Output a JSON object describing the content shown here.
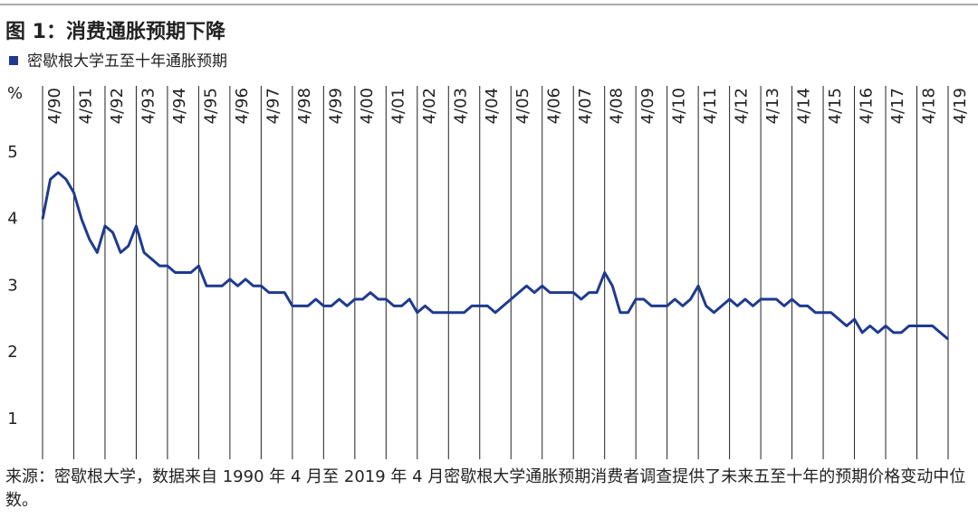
{
  "chart_data": {
    "type": "line",
    "title": "图 1：消费通胀预期下降",
    "y_unit": "%",
    "source": "来源：密歇根大学，数据来自 1990 年 4 月至 2019 年 4 月密歇根大学通胀预期消费者调查提供了未来五至十年的预期价格变动中位数。",
    "x": [
      "4/90",
      "7/90",
      "10/90",
      "1/91",
      "4/91",
      "7/91",
      "10/91",
      "1/92",
      "4/92",
      "7/92",
      "10/92",
      "1/93",
      "4/93",
      "7/93",
      "10/93",
      "1/94",
      "4/94",
      "7/94",
      "10/94",
      "1/95",
      "4/95",
      "7/95",
      "10/95",
      "1/96",
      "4/96",
      "7/96",
      "10/96",
      "1/97",
      "4/97",
      "7/97",
      "10/97",
      "1/98",
      "4/98",
      "7/98",
      "10/98",
      "1/99",
      "4/99",
      "7/99",
      "10/99",
      "1/00",
      "4/00",
      "7/00",
      "10/00",
      "1/01",
      "4/01",
      "7/01",
      "10/01",
      "1/02",
      "4/02",
      "7/02",
      "10/02",
      "1/03",
      "4/03",
      "7/03",
      "10/03",
      "1/04",
      "4/04",
      "7/04",
      "10/04",
      "1/05",
      "4/05",
      "7/05",
      "10/05",
      "1/06",
      "4/06",
      "7/06",
      "10/06",
      "1/07",
      "4/07",
      "7/07",
      "10/07",
      "1/08",
      "4/08",
      "7/08",
      "10/08",
      "1/09",
      "4/09",
      "7/09",
      "10/09",
      "1/10",
      "4/10",
      "7/10",
      "10/10",
      "1/11",
      "4/11",
      "7/11",
      "10/11",
      "1/12",
      "4/12",
      "7/12",
      "10/12",
      "1/13",
      "4/13",
      "7/13",
      "10/13",
      "1/14",
      "4/14",
      "7/14",
      "10/14",
      "1/15",
      "4/15",
      "7/15",
      "10/15",
      "1/16",
      "4/16",
      "7/16",
      "10/16",
      "1/17",
      "4/17",
      "7/17",
      "10/17",
      "1/18",
      "4/18",
      "7/18",
      "10/18",
      "1/19",
      "4/19"
    ],
    "series": [
      {
        "name": "密歇根大学五至十年通胀预期",
        "color": "#1f3a8f",
        "values": [
          4.0,
          4.6,
          4.7,
          4.6,
          4.4,
          4.0,
          3.7,
          3.5,
          3.9,
          3.8,
          3.5,
          3.6,
          3.9,
          3.5,
          3.4,
          3.3,
          3.3,
          3.2,
          3.2,
          3.2,
          3.3,
          3.0,
          3.0,
          3.0,
          3.1,
          3.0,
          3.1,
          3.0,
          3.0,
          2.9,
          2.9,
          2.9,
          2.7,
          2.7,
          2.7,
          2.8,
          2.7,
          2.7,
          2.8,
          2.7,
          2.8,
          2.8,
          2.9,
          2.8,
          2.8,
          2.7,
          2.7,
          2.8,
          2.6,
          2.7,
          2.6,
          2.6,
          2.6,
          2.6,
          2.6,
          2.7,
          2.7,
          2.7,
          2.6,
          2.7,
          2.8,
          2.9,
          3.0,
          2.9,
          3.0,
          2.9,
          2.9,
          2.9,
          2.9,
          2.8,
          2.9,
          2.9,
          3.2,
          3.0,
          2.6,
          2.6,
          2.8,
          2.8,
          2.7,
          2.7,
          2.7,
          2.8,
          2.7,
          2.8,
          3.0,
          2.7,
          2.6,
          2.7,
          2.8,
          2.7,
          2.8,
          2.7,
          2.8,
          2.8,
          2.8,
          2.7,
          2.8,
          2.7,
          2.7,
          2.6,
          2.6,
          2.6,
          2.5,
          2.4,
          2.5,
          2.3,
          2.4,
          2.3,
          2.4,
          2.3,
          2.3,
          2.4,
          2.4,
          2.4,
          2.4,
          2.3,
          2.2
        ]
      }
    ],
    "xticks": [
      "4/90",
      "4/91",
      "4/92",
      "4/93",
      "4/94",
      "4/95",
      "4/96",
      "4/97",
      "4/98",
      "4/99",
      "4/00",
      "4/01",
      "4/02",
      "4/03",
      "4/04",
      "4/05",
      "4/06",
      "4/07",
      "4/08",
      "4/09",
      "4/10",
      "4/11",
      "4/12",
      "4/13",
      "4/14",
      "4/15",
      "4/16",
      "4/17",
      "4/18",
      "4/19"
    ],
    "ylim": [
      0.4,
      6.0
    ],
    "yticks": [
      1,
      2,
      3,
      4,
      5
    ],
    "grid": true
  }
}
